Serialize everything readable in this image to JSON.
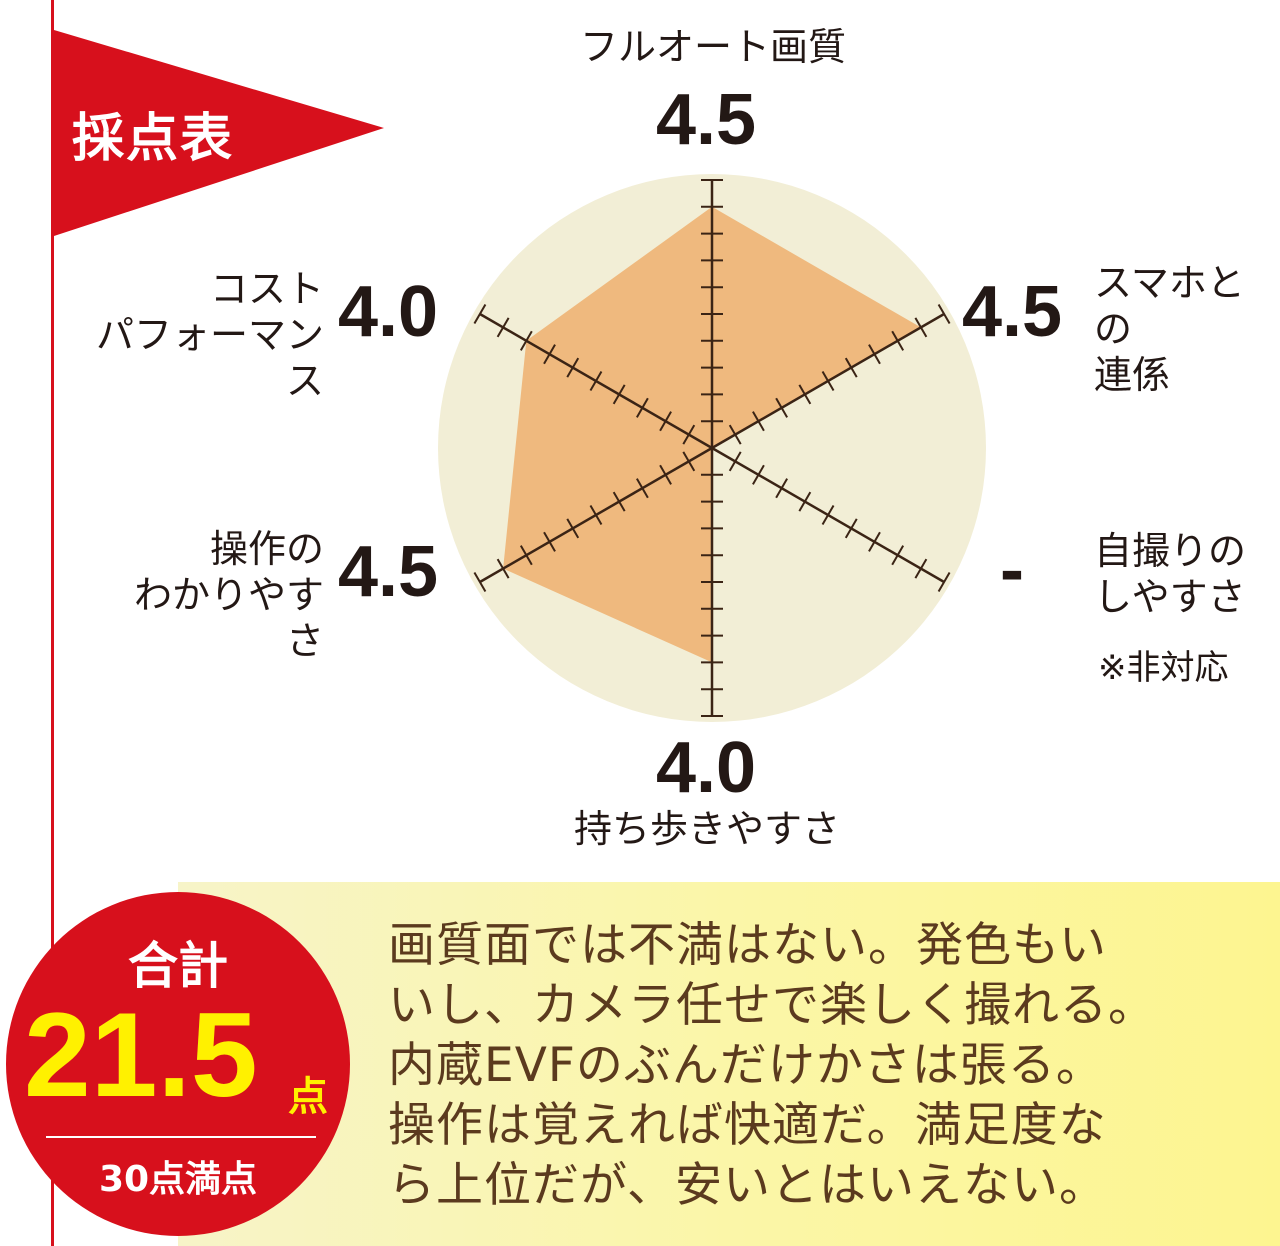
{
  "flag": {
    "title": "採点表"
  },
  "chart_data": {
    "type": "radar",
    "scale_max": 5,
    "tick_step": 0.5,
    "axes": [
      {
        "label_lines": [
          "フルオート画質"
        ],
        "score_text": "4.5",
        "value": 4.5
      },
      {
        "label_lines": [
          "スマホとの",
          "連係"
        ],
        "score_text": "4.5",
        "value": 4.5
      },
      {
        "label_lines": [
          "自撮りの",
          "しやすさ"
        ],
        "score_text": "-",
        "value": null,
        "note": "※非対応"
      },
      {
        "label_lines": [
          "持ち歩きやすさ"
        ],
        "score_text": "4.0",
        "value": 4.0
      },
      {
        "label_lines": [
          "操作の",
          "わかりやすさ"
        ],
        "score_text": "4.5",
        "value": 4.5
      },
      {
        "label_lines": [
          "コスト",
          "パフォーマンス"
        ],
        "score_text": "4.0",
        "value": 4.0
      }
    ],
    "colors": {
      "background": "#f2eed6",
      "fill": "#efb97e",
      "axis": "#3b2415"
    }
  },
  "total": {
    "label": "合計",
    "value": "21.5",
    "unit": "点",
    "max_text": "30点満点"
  },
  "comment": {
    "lines": [
      "画質面では不満はない。発色もい",
      "いし、カメラ任せで楽しく撮れる。",
      "内蔵EVFのぶんだけかさは張る。",
      "操作は覚えれば快適だ。満足度な",
      "ら上位だが、安いとはいえない。"
    ]
  },
  "colors": {
    "red": "#d7101c",
    "yellow": "#fff100",
    "comment_text": "#5b3a1e"
  }
}
